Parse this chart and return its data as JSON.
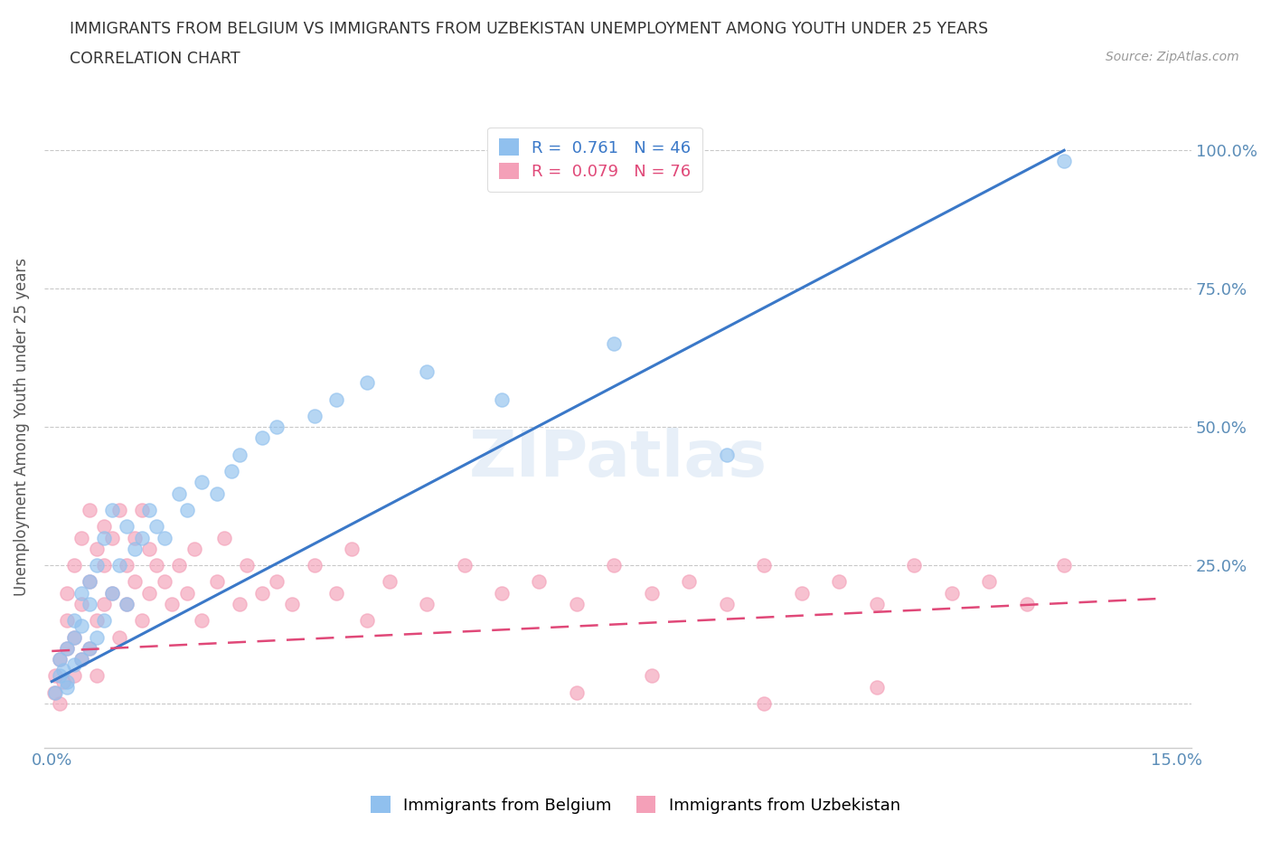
{
  "title_line1": "IMMIGRANTS FROM BELGIUM VS IMMIGRANTS FROM UZBEKISTAN UNEMPLOYMENT AMONG YOUTH UNDER 25 YEARS",
  "title_line2": "CORRELATION CHART",
  "source_text": "Source: ZipAtlas.com",
  "ylabel": "Unemployment Among Youth under 25 years",
  "xlim": [
    -0.001,
    0.152
  ],
  "ylim": [
    -0.08,
    1.08
  ],
  "belgium_R": 0.761,
  "belgium_N": 46,
  "uzbekistan_R": 0.079,
  "uzbekistan_N": 76,
  "belgium_color": "#90C0EE",
  "uzbekistan_color": "#F4A0B8",
  "belgium_line_color": "#3A78C8",
  "uzbekistan_line_color": "#E04878",
  "watermark": "ZIPatlas",
  "background_color": "#ffffff",
  "belgium_scatter_x": [
    0.0005,
    0.001,
    0.001,
    0.0015,
    0.002,
    0.002,
    0.002,
    0.003,
    0.003,
    0.003,
    0.004,
    0.004,
    0.004,
    0.005,
    0.005,
    0.005,
    0.006,
    0.006,
    0.007,
    0.007,
    0.008,
    0.008,
    0.009,
    0.01,
    0.01,
    0.011,
    0.012,
    0.013,
    0.014,
    0.015,
    0.017,
    0.018,
    0.02,
    0.022,
    0.024,
    0.025,
    0.028,
    0.03,
    0.035,
    0.038,
    0.042,
    0.05,
    0.06,
    0.075,
    0.09,
    0.135
  ],
  "belgium_scatter_y": [
    0.02,
    0.05,
    0.08,
    0.06,
    0.04,
    0.1,
    0.03,
    0.07,
    0.12,
    0.15,
    0.08,
    0.14,
    0.2,
    0.1,
    0.18,
    0.22,
    0.12,
    0.25,
    0.15,
    0.3,
    0.2,
    0.35,
    0.25,
    0.18,
    0.32,
    0.28,
    0.3,
    0.35,
    0.32,
    0.3,
    0.38,
    0.35,
    0.4,
    0.38,
    0.42,
    0.45,
    0.48,
    0.5,
    0.52,
    0.55,
    0.58,
    0.6,
    0.55,
    0.65,
    0.45,
    0.98
  ],
  "uzbekistan_scatter_x": [
    0.0003,
    0.0005,
    0.001,
    0.001,
    0.0015,
    0.002,
    0.002,
    0.002,
    0.003,
    0.003,
    0.003,
    0.004,
    0.004,
    0.004,
    0.005,
    0.005,
    0.005,
    0.006,
    0.006,
    0.006,
    0.007,
    0.007,
    0.007,
    0.008,
    0.008,
    0.009,
    0.009,
    0.01,
    0.01,
    0.011,
    0.011,
    0.012,
    0.012,
    0.013,
    0.013,
    0.014,
    0.015,
    0.016,
    0.017,
    0.018,
    0.019,
    0.02,
    0.022,
    0.023,
    0.025,
    0.026,
    0.028,
    0.03,
    0.032,
    0.035,
    0.038,
    0.04,
    0.042,
    0.045,
    0.05,
    0.055,
    0.06,
    0.065,
    0.07,
    0.075,
    0.08,
    0.085,
    0.09,
    0.095,
    0.1,
    0.105,
    0.11,
    0.115,
    0.12,
    0.125,
    0.13,
    0.135,
    0.07,
    0.08,
    0.095,
    0.11
  ],
  "uzbekistan_scatter_y": [
    0.02,
    0.05,
    0.0,
    0.08,
    0.04,
    0.1,
    0.15,
    0.2,
    0.05,
    0.12,
    0.25,
    0.08,
    0.18,
    0.3,
    0.1,
    0.22,
    0.35,
    0.05,
    0.15,
    0.28,
    0.32,
    0.18,
    0.25,
    0.3,
    0.2,
    0.35,
    0.12,
    0.25,
    0.18,
    0.3,
    0.22,
    0.35,
    0.15,
    0.28,
    0.2,
    0.25,
    0.22,
    0.18,
    0.25,
    0.2,
    0.28,
    0.15,
    0.22,
    0.3,
    0.18,
    0.25,
    0.2,
    0.22,
    0.18,
    0.25,
    0.2,
    0.28,
    0.15,
    0.22,
    0.18,
    0.25,
    0.2,
    0.22,
    0.18,
    0.25,
    0.2,
    0.22,
    0.18,
    0.25,
    0.2,
    0.22,
    0.18,
    0.25,
    0.2,
    0.22,
    0.18,
    0.25,
    0.02,
    0.05,
    0.0,
    0.03
  ],
  "belgium_line_x": [
    0.0,
    0.135
  ],
  "belgium_line_y": [
    0.04,
    1.0
  ],
  "uzbekistan_line_x": [
    0.0,
    0.148
  ],
  "uzbekistan_line_y": [
    0.095,
    0.19
  ]
}
